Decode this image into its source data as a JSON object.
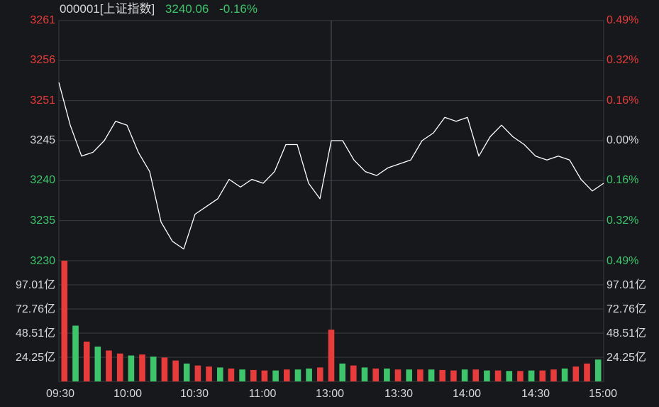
{
  "header": {
    "code_name": "000001[上证指数]",
    "price": "3240.06",
    "change": "-0.16%"
  },
  "colors": {
    "background": "#17181c",
    "grid": "#3a3b40",
    "up": "#e83b3b",
    "down": "#3ec46a",
    "line": "#ffffff",
    "text": "#d8d8d8"
  },
  "chart_data": [
    {
      "type": "line",
      "price_axis_left": [
        "3261",
        "3256",
        "3251",
        "3245",
        "3240",
        "3235",
        "3230"
      ],
      "percent_axis_right": [
        "0.49%",
        "0.32%",
        "0.16%",
        "0.00%",
        "0.16%",
        "0.32%",
        "0.49%"
      ],
      "ylim": [
        3230,
        3261
      ],
      "reference": 3245,
      "x_ticks": [
        "09:30",
        "10:00",
        "10:30",
        "11:00",
        "13:00",
        "13:30",
        "14:00",
        "14:30",
        "15:00"
      ],
      "x": [
        "09:30",
        "09:35",
        "09:40",
        "09:45",
        "09:50",
        "09:55",
        "10:00",
        "10:05",
        "10:10",
        "10:15",
        "10:20",
        "10:25",
        "10:30",
        "10:35",
        "10:40",
        "10:45",
        "10:50",
        "10:55",
        "11:00",
        "11:05",
        "11:10",
        "11:15",
        "11:20",
        "11:25",
        "11:30/13:00",
        "13:05",
        "13:10",
        "13:15",
        "13:20",
        "13:25",
        "13:30",
        "13:35",
        "13:40",
        "13:45",
        "13:50",
        "13:55",
        "14:00",
        "14:05",
        "14:10",
        "14:15",
        "14:20",
        "14:25",
        "14:30",
        "14:35",
        "14:40",
        "14:45",
        "14:50",
        "14:55",
        "15:00"
      ],
      "series": [
        {
          "values": [
            3253.0,
            3247.5,
            3243.5,
            3244.0,
            3245.5,
            3248.0,
            3247.5,
            3244.0,
            3241.5,
            3235.0,
            3232.5,
            3231.5,
            3236.0,
            3237.0,
            3238.0,
            3240.5,
            3239.5,
            3240.5,
            3240.0,
            3241.5,
            3245.0,
            3245.0,
            3240.0,
            3238.0,
            3245.5,
            3245.5,
            3243.0,
            3241.5,
            3241.0,
            3242.0,
            3242.5,
            3243.0,
            3245.5,
            3246.5,
            3248.5,
            3248.0,
            3248.5,
            3243.5,
            3246.0,
            3247.5,
            3246.0,
            3245.0,
            3243.5,
            3243.0,
            3243.5,
            3243.0,
            3240.5,
            3239.0,
            3240.0
          ]
        }
      ]
    },
    {
      "type": "bar",
      "y_ticks": [
        "97.01亿",
        "72.76亿",
        "48.51亿",
        "24.25亿"
      ],
      "ylim": [
        0,
        121.26
      ],
      "unit": "亿",
      "x": [
        "09:30",
        "09:35",
        "09:40",
        "09:45",
        "09:50",
        "09:55",
        "10:00",
        "10:05",
        "10:10",
        "10:15",
        "10:20",
        "10:25",
        "10:30",
        "10:35",
        "10:40",
        "10:45",
        "10:50",
        "10:55",
        "11:00",
        "11:05",
        "11:10",
        "11:15",
        "11:20",
        "11:25",
        "11:30/13:00",
        "13:05",
        "13:10",
        "13:15",
        "13:20",
        "13:25",
        "13:30",
        "13:35",
        "13:40",
        "13:45",
        "13:50",
        "13:55",
        "14:00",
        "14:05",
        "14:10",
        "14:15",
        "14:20",
        "14:25",
        "14:30",
        "14:35",
        "14:40",
        "14:45",
        "14:50",
        "14:55",
        "15:00"
      ],
      "values": [
        121.2,
        56.0,
        40.0,
        35.0,
        31.0,
        28.0,
        26.0,
        27.0,
        25.0,
        24.0,
        21.0,
        18.0,
        16.0,
        15.0,
        14.0,
        13.0,
        12.0,
        11.5,
        11.0,
        11.0,
        12.0,
        12.0,
        13.0,
        14.0,
        52.0,
        18.0,
        16.0,
        14.0,
        13.0,
        13.0,
        12.0,
        12.0,
        12.0,
        12.0,
        11.5,
        11.0,
        12.0,
        12.0,
        11.0,
        11.0,
        10.5,
        10.5,
        11.0,
        11.0,
        12.0,
        13.0,
        15.0,
        18.0,
        22.0
      ],
      "colors": [
        "up",
        "down",
        "up",
        "down",
        "up",
        "up",
        "down",
        "up",
        "down",
        "up",
        "up",
        "down",
        "up",
        "up",
        "down",
        "up",
        "down",
        "up",
        "up",
        "down",
        "up",
        "down",
        "down",
        "up",
        "up",
        "down",
        "up",
        "down",
        "up",
        "down",
        "up",
        "down",
        "up",
        "down",
        "up",
        "up",
        "down",
        "up",
        "down",
        "up",
        "down",
        "up",
        "down",
        "up",
        "up",
        "down",
        "up",
        "up",
        "down"
      ]
    }
  ]
}
